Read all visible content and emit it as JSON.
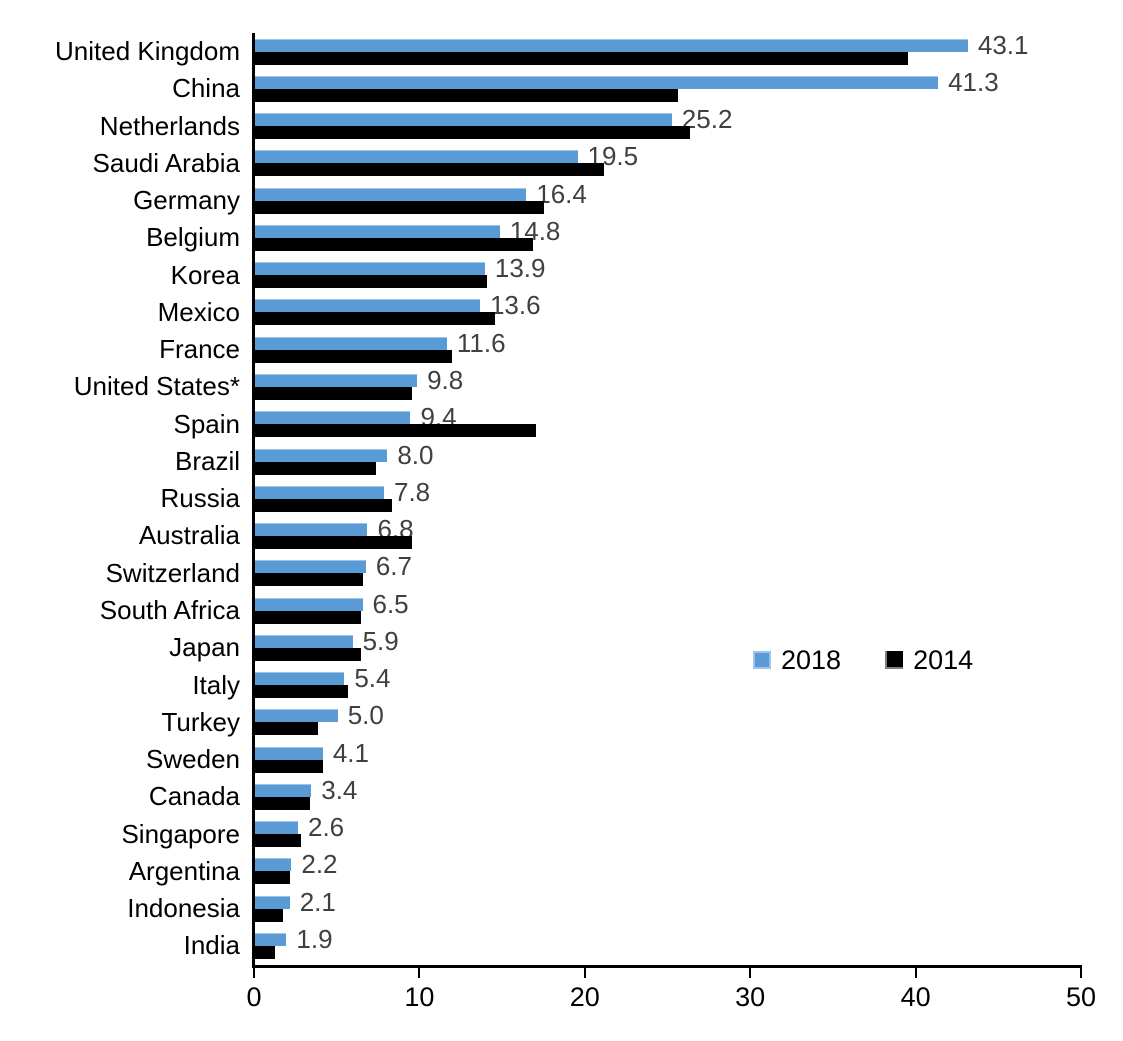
{
  "chart_data": {
    "type": "bar",
    "orientation": "horizontal",
    "title": "",
    "xlabel": "",
    "ylabel": "",
    "xlim": [
      0,
      50
    ],
    "xticks": [
      0,
      10,
      20,
      30,
      40,
      50
    ],
    "grid": false,
    "legend_position": "middle-right",
    "value_labels": "2018 series, outside end of blue bar, one decimal",
    "categories": [
      "United Kingdom",
      "China",
      "Netherlands",
      "Saudi Arabia",
      "Germany",
      "Belgium",
      "Korea",
      "Mexico",
      "France",
      "United States*",
      "Spain",
      "Brazil",
      "Russia",
      "Australia",
      "Switzerland",
      "South Africa",
      "Japan",
      "Italy",
      "Turkey",
      "Sweden",
      "Canada",
      "Singapore",
      "Argentina",
      "Indonesia",
      "India"
    ],
    "series": [
      {
        "name": "2018",
        "color": "#5B9BD5",
        "values": [
          43.1,
          41.3,
          25.2,
          19.5,
          16.4,
          14.8,
          13.9,
          13.6,
          11.6,
          9.8,
          9.4,
          8.0,
          7.8,
          6.8,
          6.7,
          6.5,
          5.9,
          5.4,
          5.0,
          4.1,
          3.4,
          2.6,
          2.2,
          2.1,
          1.9
        ],
        "labels": [
          "43.1",
          "41.3",
          "25.2",
          "19.5",
          "16.4",
          "14.8",
          "13.9",
          "13.6",
          "11.6",
          "9.8",
          "9.4",
          "8.0",
          "7.8",
          "6.8",
          "6.7",
          "6.5",
          "5.9",
          "5.4",
          "5.0",
          "4.1",
          "3.4",
          "2.6",
          "2.2",
          "2.1",
          "1.9"
        ]
      },
      {
        "name": "2014",
        "color": "#000000",
        "values": [
          39.5,
          25.6,
          26.3,
          21.1,
          17.5,
          16.8,
          14.0,
          14.5,
          11.9,
          9.5,
          17.0,
          7.3,
          8.3,
          9.5,
          6.5,
          6.4,
          6.4,
          5.6,
          3.8,
          4.1,
          3.3,
          2.8,
          2.1,
          1.7,
          1.2
        ]
      }
    ]
  },
  "legend": {
    "items": [
      {
        "label": "2018",
        "color": "#5B9BD5"
      },
      {
        "label": "2014",
        "color": "#000000"
      }
    ]
  }
}
